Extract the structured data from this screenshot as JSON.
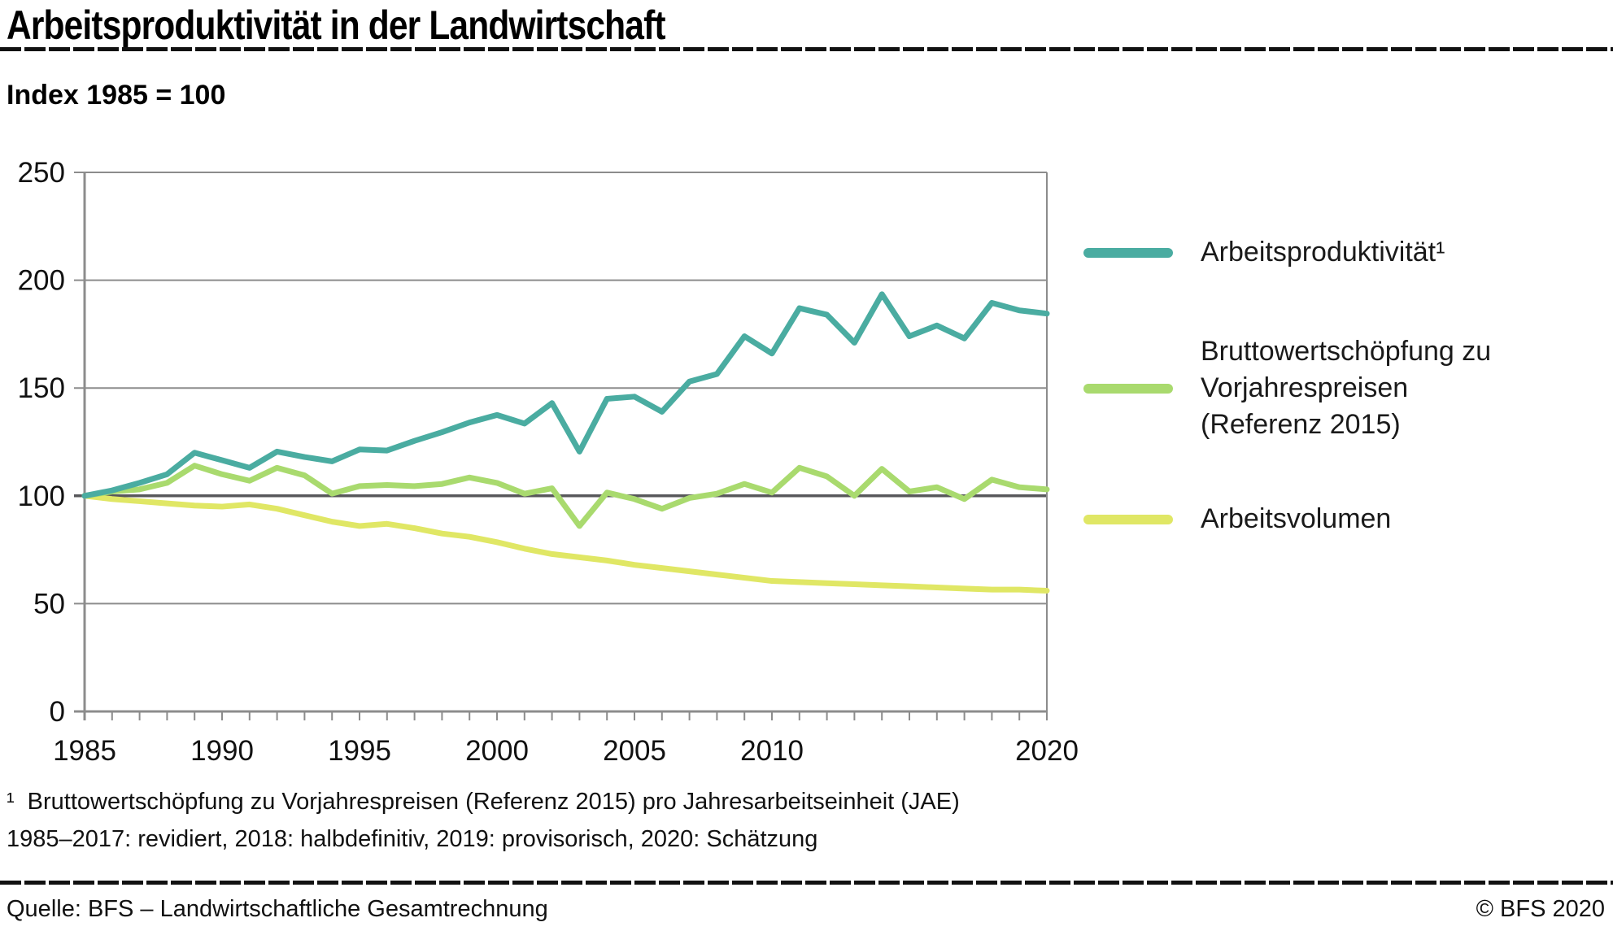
{
  "header": {
    "title": "Arbeitsproduktivität in der Landwirtschaft",
    "subtitle": "Index 1985 = 100"
  },
  "legend": {
    "items": [
      {
        "label_lines": [
          "Arbeitsproduktivität¹"
        ],
        "color": "#4aaca1"
      },
      {
        "label_lines": [
          "Bruttowertschöpfung zu",
          "Vorjahrespreisen",
          "(Referenz 2015)"
        ],
        "color": "#a9da6e"
      },
      {
        "label_lines": [
          "Arbeitsvolumen"
        ],
        "color": "#e0e765"
      }
    ]
  },
  "footnotes": {
    "marker": "¹",
    "line1": "Bruttowertschöpfung zu Vorjahrespreisen (Referenz 2015) pro Jahresarbeitseinheit (JAE)",
    "line2": "1985–2017: revidiert, 2018: halbdefinitiv, 2019: provisorisch, 2020: Schätzung"
  },
  "footer": {
    "source": "Quelle: BFS – Landwirtschaftliche Gesamtrechnung",
    "copyright": "© BFS 2020"
  },
  "chart_data": {
    "type": "line",
    "title": "Arbeitsproduktivität in der Landwirtschaft",
    "subtitle": "Index 1985 = 100",
    "x": [
      1985,
      1986,
      1987,
      1988,
      1989,
      1990,
      1991,
      1992,
      1993,
      1994,
      1995,
      1996,
      1997,
      1998,
      1999,
      2000,
      2001,
      2002,
      2003,
      2004,
      2005,
      2006,
      2007,
      2008,
      2009,
      2010,
      2011,
      2012,
      2013,
      2014,
      2015,
      2016,
      2017,
      2018,
      2019,
      2020
    ],
    "x_tick_labels": [
      1985,
      1990,
      1995,
      2000,
      2005,
      2010,
      2020
    ],
    "y_ticks": [
      0,
      50,
      100,
      150,
      200,
      250
    ],
    "ylim": [
      0,
      250
    ],
    "xlim": [
      1985,
      2020
    ],
    "reference_line_y": 100,
    "grid": true,
    "legend_position": "right",
    "series": [
      {
        "name": "Arbeitsproduktivität¹",
        "color": "#4aaca1",
        "values": [
          100,
          102.5,
          106,
          110,
          120,
          116.5,
          113,
          120.5,
          118,
          116,
          121.5,
          121,
          125.5,
          129.5,
          134,
          137.5,
          133.5,
          143,
          120.5,
          145,
          146,
          139,
          153,
          156.5,
          174,
          166,
          187,
          184,
          171,
          193.5,
          174,
          179,
          173,
          189.5,
          186,
          184.5
        ]
      },
      {
        "name": "Bruttowertschöpfung zu Vorjahrespreisen (Referenz 2015)",
        "color": "#a9da6e",
        "values": [
          100,
          102,
          103,
          106,
          114,
          110,
          107,
          113,
          109.5,
          101,
          104.5,
          105,
          104.5,
          105.5,
          108.5,
          106,
          101,
          103.5,
          86,
          101.5,
          98.5,
          94,
          99,
          101,
          105.5,
          101.5,
          113,
          109,
          100,
          112.5,
          102,
          104,
          98.5,
          107.5,
          104,
          103
        ]
      },
      {
        "name": "Arbeitsvolumen",
        "color": "#e0e765",
        "values": [
          100,
          98.5,
          97.5,
          96.5,
          95.5,
          95,
          96,
          94,
          91,
          88,
          86,
          87,
          85,
          82.5,
          81,
          78.5,
          75.5,
          73,
          71.5,
          70,
          68,
          66.5,
          65,
          63.5,
          62,
          60.5,
          60,
          59.5,
          59,
          58.5,
          58,
          57.5,
          57,
          56.5,
          56.5,
          56
        ]
      }
    ],
    "colors": {
      "grid": "#8c8c8c",
      "reference_line": "#58585b",
      "axis": "#8c8c8c",
      "tick_label": "#111111"
    }
  }
}
